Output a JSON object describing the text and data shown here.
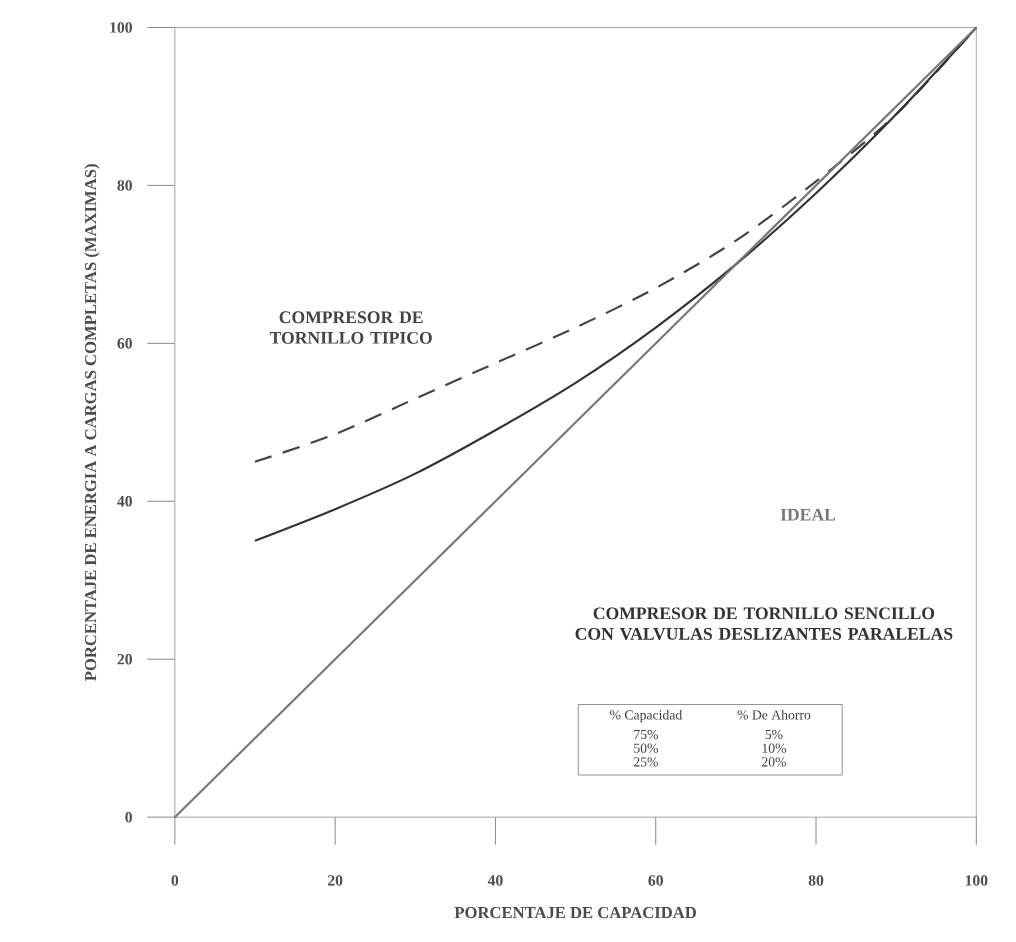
{
  "chart_data": {
    "type": "line",
    "xlabel": "PORCENTAJE DE CAPACIDAD",
    "ylabel": "PORCENTAJE DE ENERGIA A CARGAS COMPLETAS (MAXIMAS)",
    "x": [
      10,
      20,
      30,
      40,
      50,
      60,
      70,
      80,
      90,
      100
    ],
    "series": [
      {
        "name": "COMPRESOR DE TORNILLO TIPICO",
        "color": "#444444",
        "line_style": "dashed",
        "values": [
          45,
          48.5,
          53,
          57.5,
          62,
          67,
          73,
          80.5,
          89,
          100
        ]
      },
      {
        "name": "COMPRESOR DE TORNILLO SENCILLO CON VALVULAS DESLIZANTES PARALELAS",
        "color": "#333333",
        "line_style": "solid",
        "values": [
          35,
          39,
          43.5,
          49,
          55,
          62,
          70,
          79,
          89,
          100
        ]
      },
      {
        "name": "IDEAL",
        "color": "#777777",
        "line_style": "solid",
        "x": [
          0,
          100
        ],
        "values": [
          0,
          100
        ]
      }
    ],
    "annotations": [
      "% Capacidad",
      "% De Ahorro",
      "75%",
      "5%",
      "50%",
      "10%",
      "25%",
      "20%"
    ],
    "xlim": [
      0,
      100
    ],
    "ylim": [
      0,
      100
    ],
    "xticks": [
      0,
      20,
      40,
      60,
      80,
      100
    ],
    "yticks": [
      0,
      20,
      40,
      60,
      80,
      100
    ],
    "grid": false,
    "legend": false,
    "marker": "none"
  }
}
